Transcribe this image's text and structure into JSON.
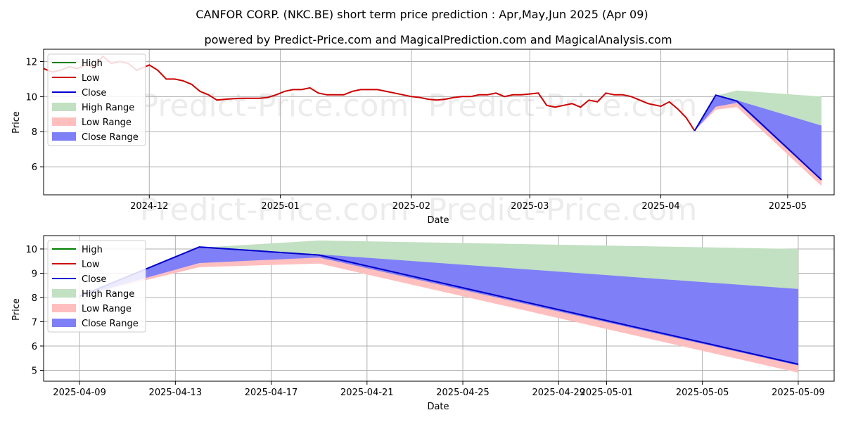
{
  "title_line1": "CANFOR CORP. (NKC.BE) short term price prediction : Apr,May,Jun 2025 (Apr 09)",
  "title_line2": "powered by Predict-Price.com and MagicalPrediction.com and MagicalAnalysis.com",
  "watermark": "Predict-Price.com",
  "colors": {
    "high": "#008000",
    "low": "#cc0000",
    "close": "#0000cc",
    "high_range": "#c2e0c2",
    "low_range": "#ffbfbf",
    "close_range": "#7f7ff7",
    "grid": "#b0b0b0"
  },
  "chart_data": [
    {
      "type": "line",
      "title": "CANFOR CORP. (NKC.BE) short term price prediction : Apr,May,Jun 2025 (Apr 09)",
      "xlabel": "Date",
      "ylabel": "Price",
      "xlim": [
        "2024-11-06",
        "2025-05-12"
      ],
      "ylim": [
        4.4,
        12.7
      ],
      "xticks": [
        "2024-12",
        "2025-01",
        "2025-02",
        "2025-03",
        "2025-04",
        "2025-05"
      ],
      "xtick_dates": [
        "2024-12-01",
        "2025-01-01",
        "2025-02-01",
        "2025-03-01",
        "2025-04-01",
        "2025-05-01"
      ],
      "yticks": [
        6,
        8,
        10,
        12
      ],
      "legend": [
        "High",
        "Low",
        "Close",
        "High Range",
        "Low Range",
        "Close Range"
      ],
      "legend_position": "top-left",
      "history": {
        "name": "Low",
        "dates": [
          "2024-11-06",
          "2024-11-08",
          "2024-11-10",
          "2024-11-12",
          "2024-11-14",
          "2024-11-16",
          "2024-11-18",
          "2024-11-20",
          "2024-11-22",
          "2024-11-24",
          "2024-11-26",
          "2024-11-28",
          "2024-12-01",
          "2024-12-03",
          "2024-12-05",
          "2024-12-07",
          "2024-12-09",
          "2024-12-11",
          "2024-12-13",
          "2024-12-15",
          "2024-12-17",
          "2024-12-19",
          "2024-12-21",
          "2024-12-23",
          "2024-12-25",
          "2024-12-27",
          "2024-12-29",
          "2024-12-31",
          "2025-01-02",
          "2025-01-04",
          "2025-01-06",
          "2025-01-08",
          "2025-01-10",
          "2025-01-12",
          "2025-01-14",
          "2025-01-16",
          "2025-01-18",
          "2025-01-20",
          "2025-01-22",
          "2025-01-24",
          "2025-01-26",
          "2025-01-28",
          "2025-01-30",
          "2025-02-01",
          "2025-02-03",
          "2025-02-05",
          "2025-02-07",
          "2025-02-09",
          "2025-02-11",
          "2025-02-13",
          "2025-02-15",
          "2025-02-17",
          "2025-02-19",
          "2025-02-21",
          "2025-02-23",
          "2025-02-25",
          "2025-02-27",
          "2025-03-01",
          "2025-03-03",
          "2025-03-05",
          "2025-03-07",
          "2025-03-09",
          "2025-03-11",
          "2025-03-13",
          "2025-03-15",
          "2025-03-17",
          "2025-03-19",
          "2025-03-21",
          "2025-03-23",
          "2025-03-25",
          "2025-03-27",
          "2025-03-29",
          "2025-04-01",
          "2025-04-03",
          "2025-04-05",
          "2025-04-07",
          "2025-04-09"
        ],
        "values": [
          11.6,
          11.4,
          11.5,
          11.7,
          11.6,
          11.8,
          11.7,
          12.3,
          11.9,
          12.0,
          11.9,
          11.5,
          11.8,
          11.5,
          11.0,
          11.0,
          10.9,
          10.7,
          10.3,
          10.1,
          9.8,
          9.85,
          9.88,
          9.9,
          9.9,
          9.9,
          9.95,
          10.1,
          10.3,
          10.4,
          10.4,
          10.5,
          10.2,
          10.1,
          10.1,
          10.1,
          10.3,
          10.4,
          10.4,
          10.4,
          10.3,
          10.2,
          10.1,
          10.0,
          9.95,
          9.85,
          9.8,
          9.85,
          9.95,
          10.0,
          10.0,
          10.1,
          10.1,
          10.2,
          10.0,
          10.1,
          10.1,
          10.15,
          10.2,
          9.5,
          9.4,
          9.5,
          9.6,
          9.4,
          9.8,
          9.7,
          10.2,
          10.1,
          10.1,
          10.0,
          9.8,
          9.6,
          9.45,
          9.7,
          9.3,
          8.8,
          8.05
        ]
      },
      "prediction": {
        "dates": [
          "2025-04-09",
          "2025-04-14",
          "2025-04-19",
          "2025-05-09"
        ],
        "high_range_upper": [
          8.05,
          10.05,
          10.35,
          10.0
        ],
        "close_range_upper": [
          8.05,
          10.05,
          9.78,
          8.35
        ],
        "close": [
          8.05,
          10.08,
          9.75,
          5.25
        ],
        "close_range_lower": [
          8.05,
          9.42,
          9.65,
          5.2
        ],
        "low_range_lower": [
          8.05,
          9.25,
          9.4,
          4.9
        ]
      }
    },
    {
      "type": "line",
      "xlabel": "Date",
      "ylabel": "Price",
      "xlim": [
        "2025-04-07.5",
        "2025-05-10.5"
      ],
      "ylim": [
        4.55,
        10.55
      ],
      "xticks": [
        "2025-04-09",
        "2025-04-13",
        "2025-04-17",
        "2025-04-21",
        "2025-04-25",
        "2025-04-29",
        "2025-05-01",
        "2025-05-05",
        "2025-05-09"
      ],
      "yticks": [
        5,
        6,
        7,
        8,
        9,
        10
      ],
      "legend": [
        "High",
        "Low",
        "Close",
        "High Range",
        "Low Range",
        "Close Range"
      ],
      "legend_position": "top-left",
      "prediction": {
        "dates": [
          "2025-04-09",
          "2025-04-14",
          "2025-04-19",
          "2025-05-09"
        ],
        "high_range_upper": [
          8.05,
          10.05,
          10.35,
          10.0
        ],
        "close_range_upper": [
          8.05,
          10.05,
          9.78,
          8.35
        ],
        "close": [
          8.05,
          10.08,
          9.75,
          5.25
        ],
        "close_range_lower": [
          8.05,
          9.42,
          9.65,
          5.2
        ],
        "low_range_lower": [
          8.05,
          9.25,
          9.4,
          4.9
        ]
      }
    }
  ]
}
